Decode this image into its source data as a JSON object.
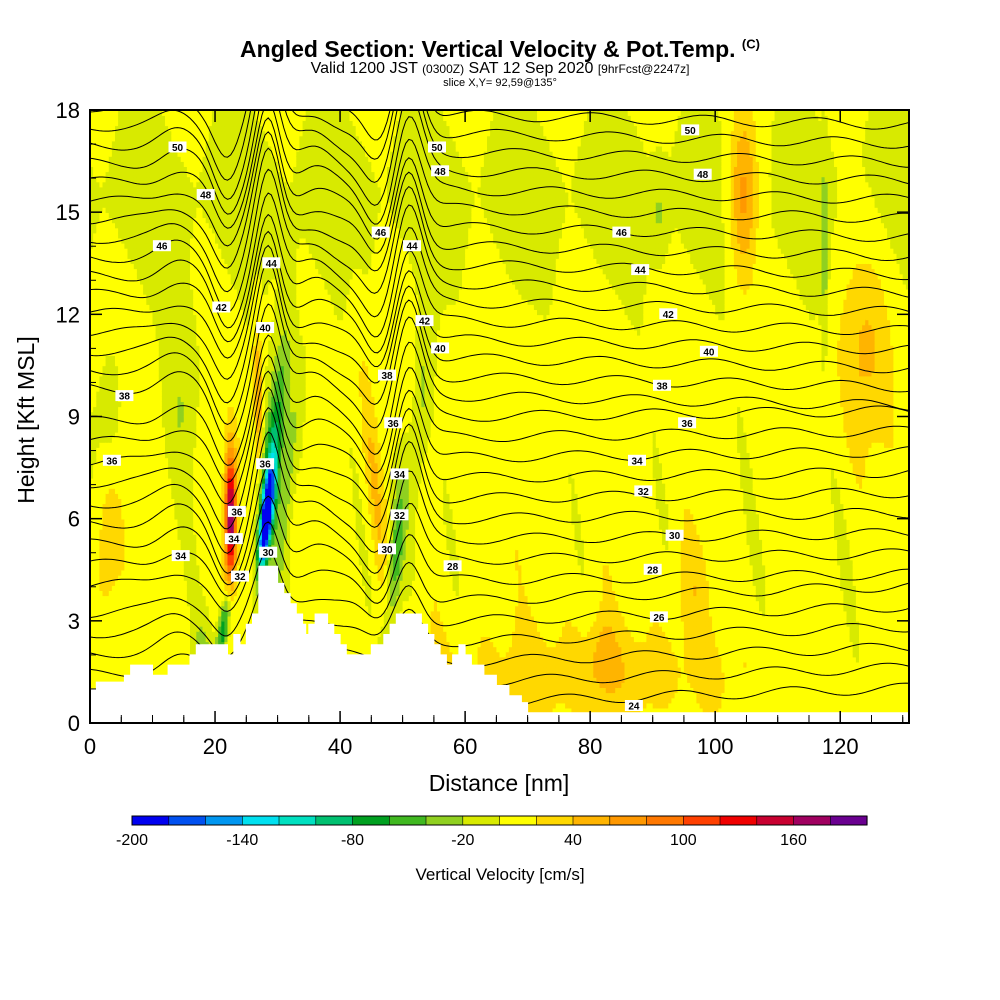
{
  "title": {
    "main": "Angled Section: Vertical Velocity & Pot.Temp.",
    "main_tag": "(C)",
    "valid_prefix": "Valid 1200 JST",
    "valid_utc": "(0300Z)",
    "valid_date": "SAT 12 Sep 2020",
    "valid_fcst": "[9hrFcst@2247z]",
    "slice": "slice X,Y= 92,59@135°"
  },
  "chart_data": {
    "type": "heatmap",
    "xlabel": "Distance [nm]",
    "ylabel": "Height [Kft MSL]",
    "xlim": [
      0,
      131
    ],
    "ylim": [
      0,
      18
    ],
    "x_ticks": [
      0,
      20,
      40,
      60,
      80,
      100,
      120
    ],
    "y_ticks": [
      0,
      3,
      6,
      9,
      12,
      15,
      18
    ],
    "colorbar": {
      "label": "Vertical Velocity [cm/s]",
      "tick_labels": [
        "-200",
        "-140",
        "-80",
        "-20",
        "40",
        "100",
        "160"
      ],
      "levels_min": -200,
      "levels_step": 20,
      "colors": [
        "#0000f0",
        "#0050f0",
        "#0096f0",
        "#00e0f0",
        "#00e0c0",
        "#00c070",
        "#00a020",
        "#40b820",
        "#90d020",
        "#d8ea00",
        "#ffff00",
        "#ffd800",
        "#ffb400",
        "#ff9800",
        "#ff7800",
        "#ff4000",
        "#f00000",
        "#c80030",
        "#a00060",
        "#6a0090"
      ]
    },
    "isentrope_labels": [
      {
        "text": "50",
        "x": 14,
        "y": 16.9
      },
      {
        "text": "50",
        "x": 55.5,
        "y": 16.9
      },
      {
        "text": "50",
        "x": 96,
        "y": 17.4
      },
      {
        "text": "48",
        "x": 18.5,
        "y": 15.5
      },
      {
        "text": "48",
        "x": 56,
        "y": 16.2
      },
      {
        "text": "48",
        "x": 98,
        "y": 16.1
      },
      {
        "text": "46",
        "x": 11.5,
        "y": 14.0
      },
      {
        "text": "46",
        "x": 46.5,
        "y": 14.4
      },
      {
        "text": "46",
        "x": 85,
        "y": 14.4
      },
      {
        "text": "44",
        "x": 29,
        "y": 13.5
      },
      {
        "text": "44",
        "x": 51.5,
        "y": 14.0
      },
      {
        "text": "44",
        "x": 88,
        "y": 13.3
      },
      {
        "text": "42",
        "x": 21,
        "y": 12.2
      },
      {
        "text": "42",
        "x": 53.5,
        "y": 11.8
      },
      {
        "text": "42",
        "x": 92.5,
        "y": 12.0
      },
      {
        "text": "40",
        "x": 28,
        "y": 11.6
      },
      {
        "text": "40",
        "x": 56,
        "y": 11.0
      },
      {
        "text": "40",
        "x": 99,
        "y": 10.9
      },
      {
        "text": "38",
        "x": 5.5,
        "y": 9.6
      },
      {
        "text": "38",
        "x": 47.5,
        "y": 10.2
      },
      {
        "text": "38",
        "x": 91.5,
        "y": 9.9
      },
      {
        "text": "36",
        "x": 3.5,
        "y": 7.7
      },
      {
        "text": "36",
        "x": 48.5,
        "y": 8.8
      },
      {
        "text": "36",
        "x": 95.5,
        "y": 8.8
      },
      {
        "text": "36",
        "x": 28,
        "y": 7.6
      },
      {
        "text": "36",
        "x": 23.5,
        "y": 6.2
      },
      {
        "text": "34",
        "x": 23,
        "y": 5.4
      },
      {
        "text": "34",
        "x": 14.5,
        "y": 4.9
      },
      {
        "text": "34",
        "x": 49.5,
        "y": 7.3
      },
      {
        "text": "34",
        "x": 87.5,
        "y": 7.7
      },
      {
        "text": "32",
        "x": 24,
        "y": 4.3
      },
      {
        "text": "32",
        "x": 49.5,
        "y": 6.1
      },
      {
        "text": "32",
        "x": 88.5,
        "y": 6.8
      },
      {
        "text": "30",
        "x": 28.5,
        "y": 5.0
      },
      {
        "text": "30",
        "x": 47.5,
        "y": 5.1
      },
      {
        "text": "30",
        "x": 93.5,
        "y": 5.5
      },
      {
        "text": "28",
        "x": 58,
        "y": 4.6
      },
      {
        "text": "28",
        "x": 90,
        "y": 4.5
      },
      {
        "text": "26",
        "x": 91,
        "y": 3.1
      },
      {
        "text": "24",
        "x": 87,
        "y": 0.5
      }
    ]
  }
}
